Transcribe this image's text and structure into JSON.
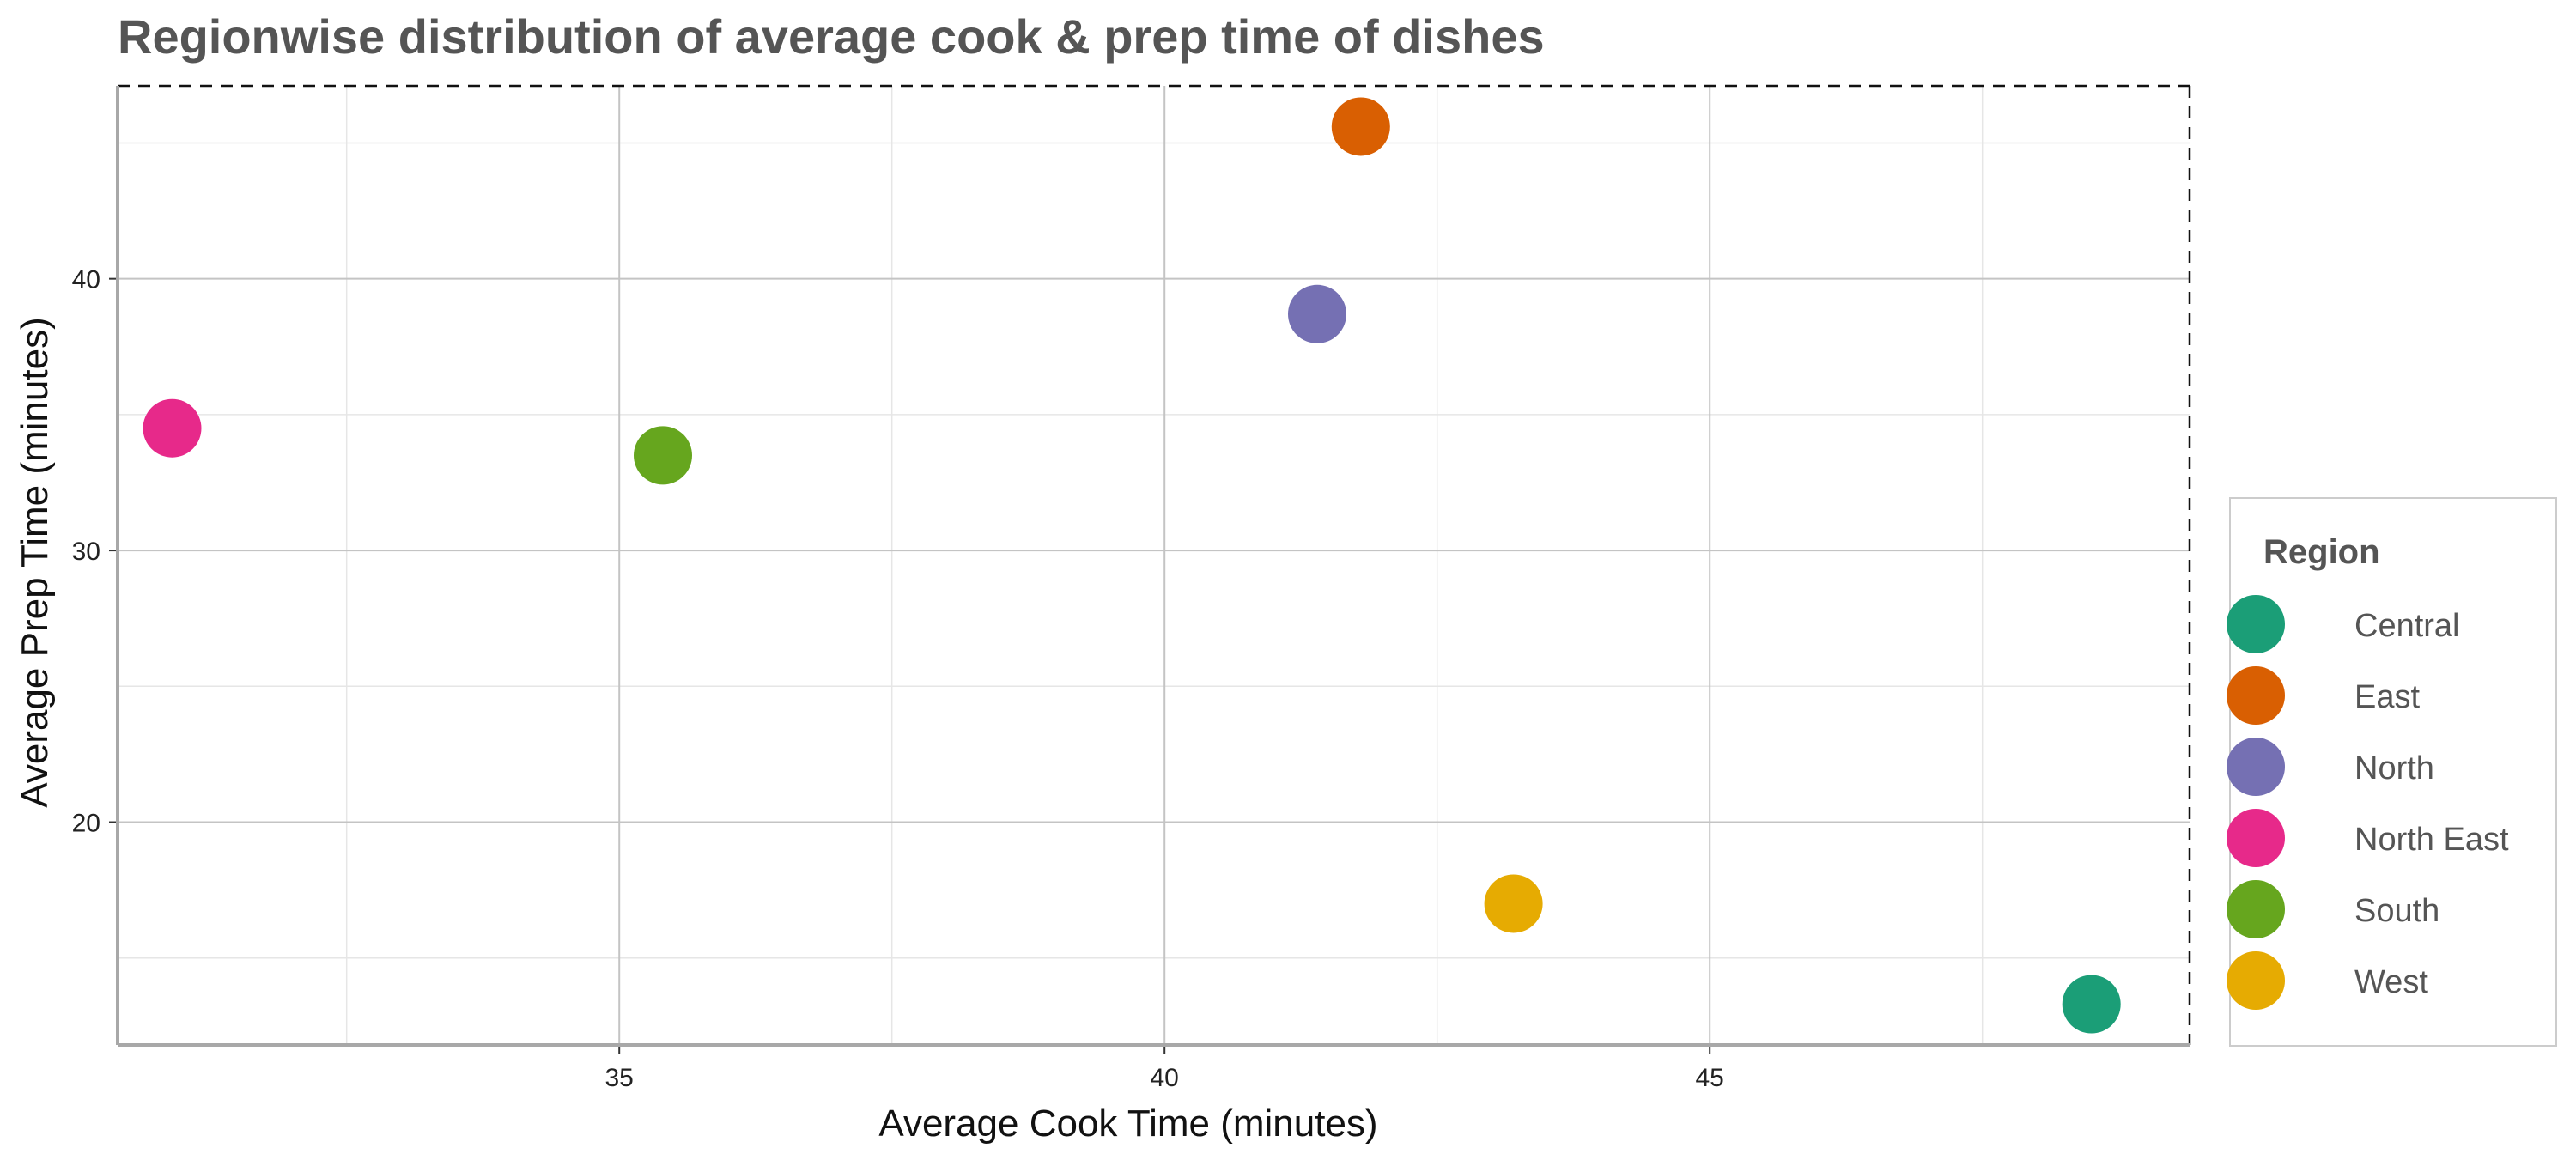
{
  "chart_data": {
    "type": "scatter",
    "title": "Regionwise distribution of average cook & prep time of dishes",
    "xlabel": "Average Cook Time (minutes)",
    "ylabel": "Average Prep Time (minutes)",
    "xlim": [
      30.4,
      49.4
    ],
    "ylim": [
      11.8,
      47.1
    ],
    "x_ticks": [
      35,
      40,
      45
    ],
    "y_ticks": [
      20,
      30,
      40
    ],
    "grid": true,
    "legend": {
      "title": "Region",
      "position": "right"
    },
    "series": [
      {
        "name": "Central",
        "color": "#1B9E77",
        "x": 48.5,
        "y": 13.3
      },
      {
        "name": "East",
        "color": "#D95F02",
        "x": 41.8,
        "y": 45.6
      },
      {
        "name": "North",
        "color": "#7570B3",
        "x": 41.4,
        "y": 38.7
      },
      {
        "name": "North East",
        "color": "#E7298A",
        "x": 30.9,
        "y": 34.5
      },
      {
        "name": "South",
        "color": "#66A61E",
        "x": 35.4,
        "y": 33.5
      },
      {
        "name": "West",
        "color": "#E6AB02",
        "x": 43.2,
        "y": 17.0
      }
    ]
  }
}
